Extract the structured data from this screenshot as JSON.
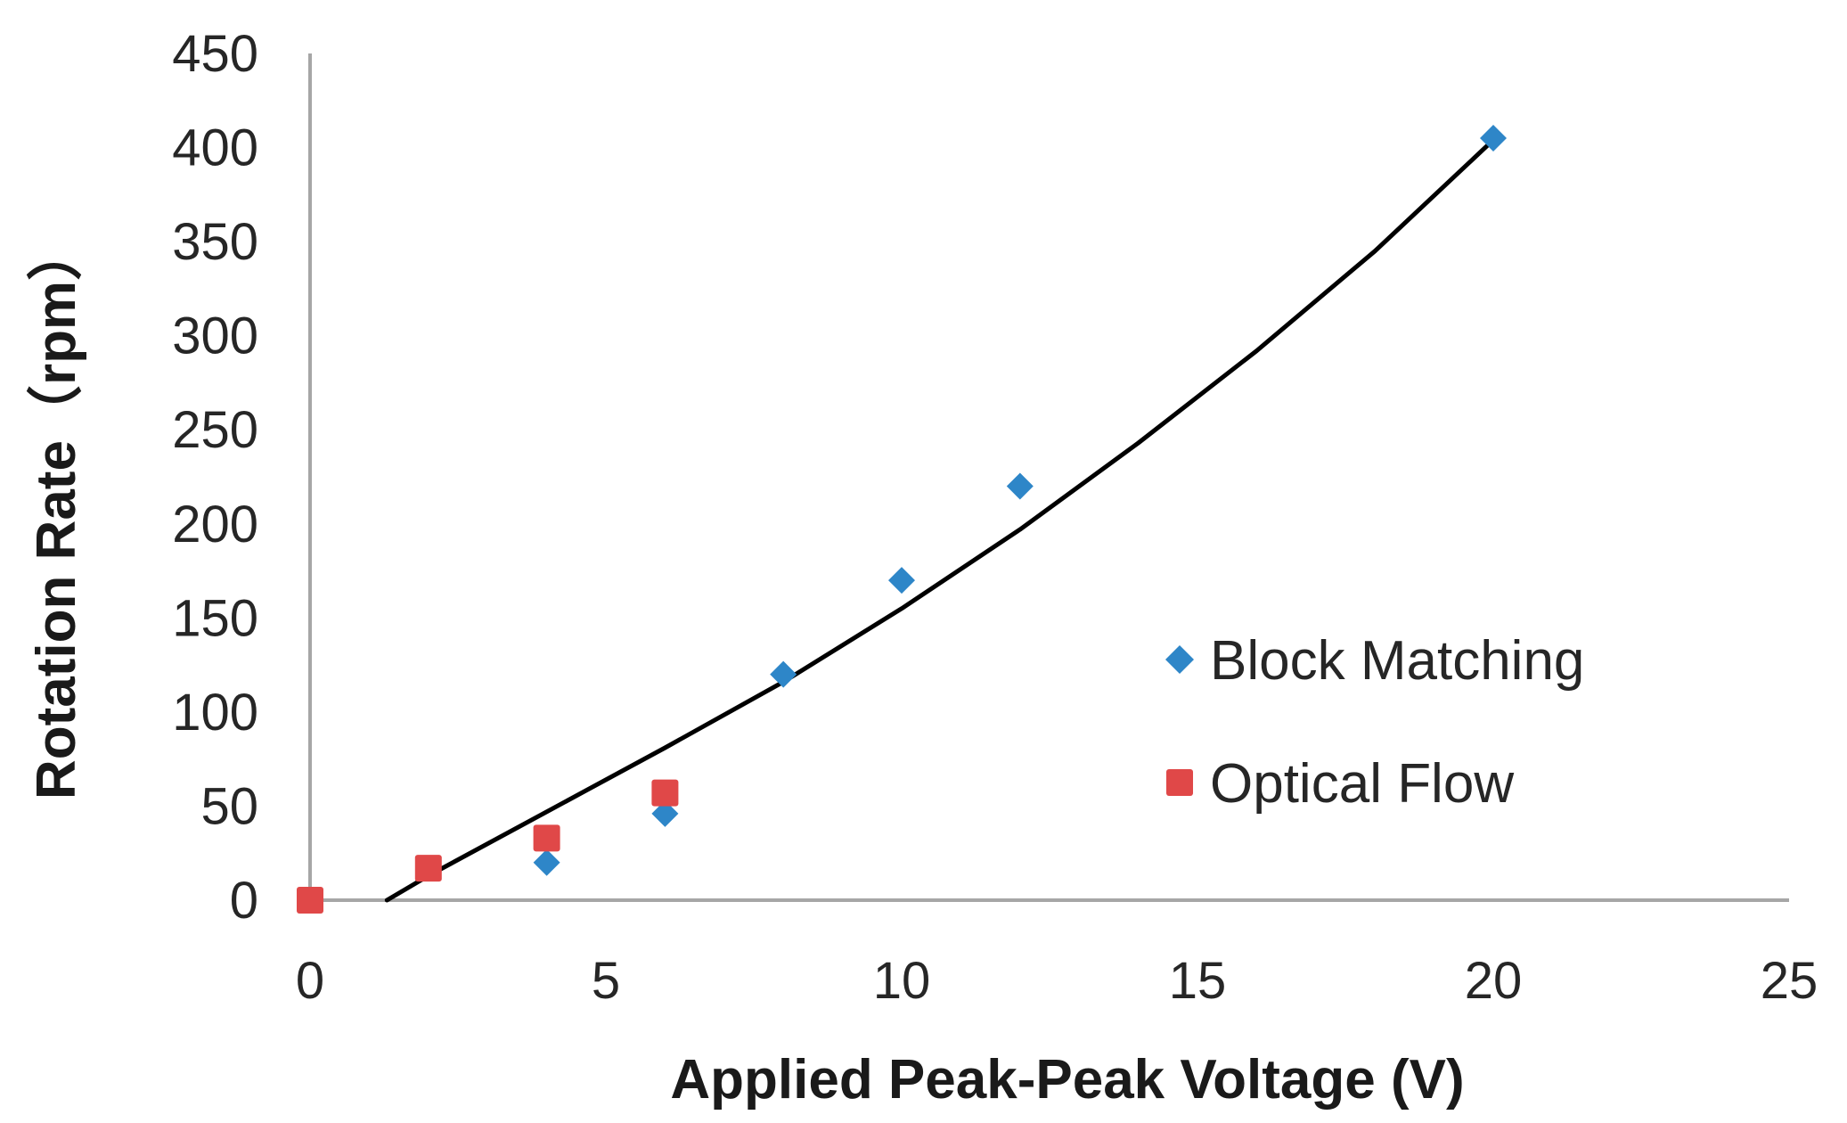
{
  "chart_data": {
    "type": "scatter",
    "title": "",
    "xlabel": "Applied Peak-Peak Voltage (V)",
    "ylabel": "Rotation Rate（rpm）",
    "xlim": [
      0,
      25
    ],
    "ylim": [
      0,
      450
    ],
    "x_ticks": [
      "0",
      "5",
      "10",
      "15",
      "20",
      "25"
    ],
    "y_ticks": [
      "0",
      "50",
      "100",
      "150",
      "200",
      "250",
      "300",
      "350",
      "400",
      "450"
    ],
    "grid": false,
    "legend_position": "right",
    "series": [
      {
        "name": "Block Matching",
        "marker": "diamond",
        "color": "#2E86C8",
        "x": [
          4,
          6,
          8,
          10,
          12,
          20
        ],
        "y": [
          20,
          46,
          120,
          170,
          220,
          405
        ]
      },
      {
        "name": "Optical Flow",
        "marker": "square",
        "color": "#E04848",
        "x": [
          0,
          2,
          4,
          6
        ],
        "y": [
          0,
          17,
          33,
          57
        ]
      }
    ],
    "trendline": {
      "color": "#000000",
      "x": [
        1.3,
        2,
        4,
        6,
        8,
        10,
        12,
        14,
        16,
        18,
        20
      ],
      "y": [
        0,
        13,
        47,
        81,
        116,
        155,
        197,
        243,
        292,
        345,
        404
      ]
    }
  }
}
